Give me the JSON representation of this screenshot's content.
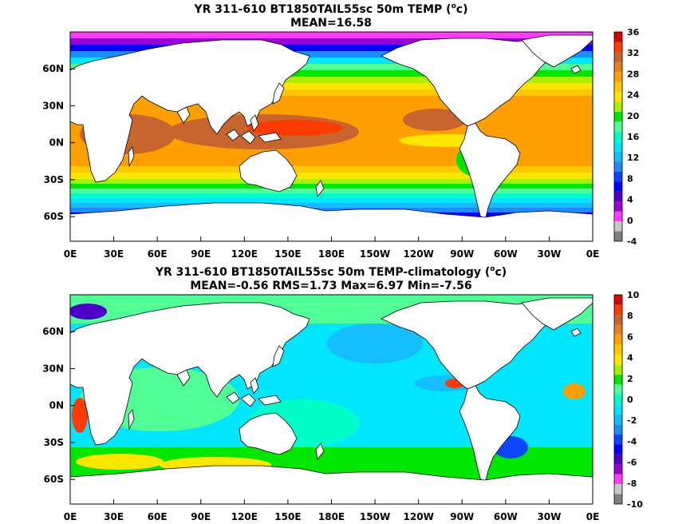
{
  "chart_data": [
    {
      "type": "heatmap",
      "title": "YR 311-610 BT1850TAIL55sc 50m TEMP (",
      "title_sup": "o",
      "title_end": "c)",
      "subtitle": "MEAN=16.58",
      "x_ticks": [
        "0E",
        "30E",
        "60E",
        "90E",
        "120E",
        "150E",
        "180E",
        "150W",
        "120W",
        "90W",
        "60W",
        "30W",
        "0E"
      ],
      "y_ticks": [
        "60N",
        "30N",
        "0N",
        "30S",
        "60S"
      ],
      "xlim": [
        0,
        360
      ],
      "ylim": [
        -80,
        90
      ],
      "colorbar": {
        "ticks": [
          "-4",
          "0",
          "4",
          "8",
          "12",
          "16",
          "20",
          "24",
          "28",
          "32",
          "36"
        ],
        "levels": [
          -4,
          -2,
          0,
          2,
          4,
          6,
          8,
          10,
          12,
          14,
          16,
          18,
          20,
          22,
          24,
          26,
          28,
          30,
          32,
          34,
          36
        ],
        "colors": [
          "#808080",
          "#c8c8c8",
          "#ff3cff",
          "#9a00d6",
          "#4b00c8",
          "#0000ff",
          "#0a46ff",
          "#1e8cff",
          "#14beff",
          "#00e6ff",
          "#00ffc8",
          "#50ff96",
          "#00e600",
          "#aaf000",
          "#ffe600",
          "#ffc800",
          "#ffa000",
          "#e6821e",
          "#c8642d",
          "#ff3c00",
          "#dc0000"
        ]
      }
    },
    {
      "type": "heatmap",
      "title": "YR 311-610 BT1850TAIL55sc 50m TEMP-climatology (",
      "title_sup": "o",
      "title_end": "c)",
      "subtitle": "MEAN=-0.56   RMS=1.73   Max=6.97   Min=-7.56",
      "x_ticks": [
        "0E",
        "30E",
        "60E",
        "90E",
        "120E",
        "150E",
        "180E",
        "150W",
        "120W",
        "90W",
        "60W",
        "30W",
        "0E"
      ],
      "y_ticks": [
        "60N",
        "30N",
        "0N",
        "30S",
        "60S"
      ],
      "xlim": [
        0,
        360
      ],
      "ylim": [
        -80,
        90
      ],
      "colorbar": {
        "ticks": [
          "-10",
          "-8",
          "-6",
          "-4",
          "-2",
          "0",
          "2",
          "4",
          "6",
          "8",
          "10"
        ],
        "levels": [
          -10,
          -9,
          -8,
          -7,
          -6,
          -5,
          -4,
          -3,
          -2,
          -1,
          0,
          1,
          2,
          3,
          4,
          5,
          6,
          7,
          8,
          9,
          10
        ],
        "colors": [
          "#808080",
          "#c8c8c8",
          "#ff3cff",
          "#9a00d6",
          "#4b00c8",
          "#0000ff",
          "#0a46ff",
          "#1e8cff",
          "#14beff",
          "#00e6ff",
          "#00ffc8",
          "#50ff96",
          "#00e600",
          "#aaf000",
          "#ffe600",
          "#ffc800",
          "#ffa000",
          "#e6821e",
          "#c8642d",
          "#ff3c00",
          "#dc0000"
        ]
      }
    }
  ]
}
